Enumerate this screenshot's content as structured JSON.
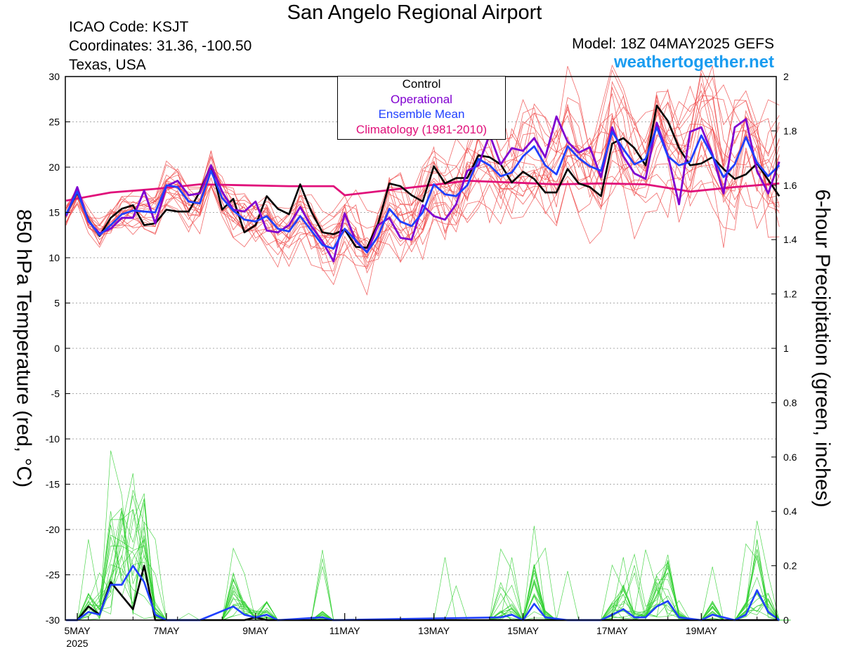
{
  "header": {
    "title": "San Angelo Regional Airport",
    "icao": "ICAO Code: KSJT",
    "coords": "Coordinates: 31.36, -100.50",
    "location": "Texas, USA",
    "model": "Model: 18Z 04MAY2025 GEFS",
    "site": "weathertogether.net"
  },
  "axes": {
    "left_label": "850 hPa Temperature (red, °C)",
    "right_label": "6-hour Precipitation (green, inches)"
  },
  "legend": [
    {
      "label": "Control",
      "color": "#000000"
    },
    {
      "label": "Operational",
      "color": "#8000d0"
    },
    {
      "label": "Ensemble Mean",
      "color": "#2040ff"
    },
    {
      "label": "Climatology (1981-2010)",
      "color": "#e0107a"
    }
  ],
  "colors": {
    "members_temp": "#f05050",
    "members_precip": "#30d030",
    "control": "#000000",
    "operational": "#8000d0",
    "mean": "#2040ff",
    "climatology": "#e0107a",
    "grid": "#aaaaaa"
  },
  "chart_data": {
    "type": "line",
    "x_ticks": [
      {
        "label": "5MAY",
        "sublabel": "2025",
        "day": 5
      },
      {
        "label": "7MAY",
        "day": 7
      },
      {
        "label": "9MAY",
        "day": 9
      },
      {
        "label": "11MAY",
        "day": 11
      },
      {
        "label": "13MAY",
        "day": 13
      },
      {
        "label": "15MAY",
        "day": 15
      },
      {
        "label": "17MAY",
        "day": 17
      },
      {
        "label": "19MAY",
        "day": 19
      }
    ],
    "x_range": [
      "2025-05-04 18Z",
      "2025-05-20 18Z"
    ],
    "y_left": {
      "min": -30,
      "max": 30,
      "ticks": [
        30,
        25,
        20,
        15,
        10,
        5,
        0,
        -5,
        -10,
        -15,
        -20,
        -25,
        -30
      ]
    },
    "y_right": {
      "min": 0,
      "max": 2,
      "ticks": [
        "2",
        "1.8",
        "1.6",
        "1.4",
        "1.2",
        "1",
        "0.8",
        "0.6",
        "0.4",
        "0.2",
        "0"
      ]
    },
    "grid": "dotted horizontal",
    "legend_position": "top-center",
    "temperature": {
      "control": [
        [
          "05-04 18Z",
          14.8
        ],
        [
          "05-05 00Z",
          17.2
        ],
        [
          "05-05 06Z",
          14.2
        ],
        [
          "05-05 12Z",
          12.4
        ],
        [
          "05-05 18Z",
          14.4
        ],
        [
          "05-06 00Z",
          15.4
        ],
        [
          "05-06 06Z",
          15.8
        ],
        [
          "05-06 12Z",
          13.6
        ],
        [
          "05-06 18Z",
          13.8
        ],
        [
          "05-07 00Z",
          15.3
        ],
        [
          "05-07 06Z",
          15.1
        ],
        [
          "05-07 12Z",
          15.1
        ],
        [
          "05-07 18Z",
          17.3
        ],
        [
          "05-08 00Z",
          20.2
        ],
        [
          "05-08 06Z",
          15.3
        ],
        [
          "05-08 12Z",
          16.5
        ],
        [
          "05-08 18Z",
          12.8
        ],
        [
          "05-09 00Z",
          13.6
        ],
        [
          "05-09 06Z",
          16.8
        ],
        [
          "05-09 12Z",
          15.4
        ],
        [
          "05-09 18Z",
          14.8
        ],
        [
          "05-10 00Z",
          18.1
        ],
        [
          "05-10 06Z",
          15.1
        ],
        [
          "05-10 12Z",
          12.8
        ],
        [
          "05-10 18Z",
          12.6
        ],
        [
          "05-11 00Z",
          13.1
        ],
        [
          "05-11 06Z",
          11.2
        ],
        [
          "05-11 12Z",
          11.1
        ],
        [
          "05-11 18Z",
          13.8
        ],
        [
          "05-12 00Z",
          18.2
        ],
        [
          "05-12 06Z",
          17.9
        ],
        [
          "05-12 12Z",
          16.9
        ],
        [
          "05-12 18Z",
          16.2
        ],
        [
          "05-13 00Z",
          20.1
        ],
        [
          "05-13 06Z",
          18.2
        ],
        [
          "05-13 12Z",
          18.8
        ],
        [
          "05-13 18Z",
          18.8
        ],
        [
          "05-14 00Z",
          21.3
        ],
        [
          "05-14 06Z",
          21.1
        ],
        [
          "05-14 12Z",
          20.3
        ],
        [
          "05-14 18Z",
          18.3
        ],
        [
          "05-15 00Z",
          19.5
        ],
        [
          "05-15 06Z",
          18.7
        ],
        [
          "05-15 12Z",
          17.2
        ],
        [
          "05-15 18Z",
          17.2
        ],
        [
          "05-16 00Z",
          19.8
        ],
        [
          "05-16 06Z",
          18.2
        ],
        [
          "05-16 12Z",
          17.8
        ],
        [
          "05-16 18Z",
          16.8
        ],
        [
          "05-17 00Z",
          22.6
        ],
        [
          "05-17 06Z",
          23.2
        ],
        [
          "05-17 12Z",
          22.1
        ],
        [
          "05-17 18Z",
          20.2
        ],
        [
          "05-18 00Z",
          26.8
        ],
        [
          "05-18 06Z",
          25.1
        ],
        [
          "05-18 12Z",
          22.1
        ],
        [
          "05-18 18Z",
          20.2
        ],
        [
          "05-19 00Z",
          20.4
        ],
        [
          "05-19 06Z",
          21.1
        ],
        [
          "05-19 12Z",
          19.8
        ],
        [
          "05-19 18Z",
          18.7
        ],
        [
          "05-20 00Z",
          19.2
        ],
        [
          "05-20 06Z",
          20.4
        ],
        [
          "05-20 12Z",
          18.6
        ],
        [
          "05-20 18Z",
          16.8
        ]
      ],
      "operational": [
        [
          "05-04 18Z",
          14.6
        ],
        [
          "05-05 00Z",
          17.8
        ],
        [
          "05-05 06Z",
          14.0
        ],
        [
          "05-05 12Z",
          12.7
        ],
        [
          "05-05 18Z",
          13.2
        ],
        [
          "05-06 00Z",
          14.4
        ],
        [
          "05-06 06Z",
          14.4
        ],
        [
          "05-06 12Z",
          17.4
        ],
        [
          "05-06 18Z",
          13.8
        ],
        [
          "05-07 00Z",
          17.9
        ],
        [
          "05-07 06Z",
          18.5
        ],
        [
          "05-07 12Z",
          16.9
        ],
        [
          "05-07 18Z",
          17.1
        ],
        [
          "05-08 00Z",
          20.2
        ],
        [
          "05-08 06Z",
          17.3
        ],
        [
          "05-08 12Z",
          15.3
        ],
        [
          "05-08 18Z",
          15.1
        ],
        [
          "05-09 00Z",
          16.2
        ],
        [
          "05-09 06Z",
          13.0
        ],
        [
          "05-09 12Z",
          12.8
        ],
        [
          "05-09 18Z",
          13.6
        ],
        [
          "05-10 00Z",
          15.6
        ],
        [
          "05-10 06Z",
          13.5
        ],
        [
          "05-10 12Z",
          11.8
        ],
        [
          "05-10 18Z",
          9.6
        ],
        [
          "05-11 00Z",
          14.9
        ],
        [
          "05-11 06Z",
          11.8
        ],
        [
          "05-11 12Z",
          10.6
        ],
        [
          "05-11 18Z",
          13.6
        ],
        [
          "05-12 00Z",
          14.4
        ],
        [
          "05-12 06Z",
          12.2
        ],
        [
          "05-12 12Z",
          12.0
        ],
        [
          "05-12 18Z",
          15.8
        ],
        [
          "05-13 00Z",
          14.6
        ],
        [
          "05-13 06Z",
          14.2
        ],
        [
          "05-13 12Z",
          15.9
        ],
        [
          "05-13 18Z",
          19.6
        ],
        [
          "05-14 00Z",
          20.2
        ],
        [
          "05-14 06Z",
          23.6
        ],
        [
          "05-14 12Z",
          20.3
        ],
        [
          "05-14 18Z",
          22.1
        ],
        [
          "05-15 00Z",
          21.8
        ],
        [
          "05-15 06Z",
          23.2
        ],
        [
          "05-15 12Z",
          21.1
        ],
        [
          "05-15 18Z",
          25.6
        ],
        [
          "05-16 00Z",
          22.8
        ],
        [
          "05-16 06Z",
          21.6
        ],
        [
          "05-16 12Z",
          22.2
        ],
        [
          "05-16 18Z",
          18.9
        ],
        [
          "05-17 00Z",
          24.4
        ],
        [
          "05-17 06Z",
          21.2
        ],
        [
          "05-17 12Z",
          19.3
        ],
        [
          "05-17 18Z",
          18.7
        ],
        [
          "05-18 00Z",
          24.9
        ],
        [
          "05-18 06Z",
          21.3
        ],
        [
          "05-18 12Z",
          15.9
        ],
        [
          "05-18 18Z",
          23.9
        ],
        [
          "05-19 00Z",
          24.4
        ],
        [
          "05-19 06Z",
          21.4
        ],
        [
          "05-19 12Z",
          17.1
        ],
        [
          "05-19 18Z",
          24.4
        ],
        [
          "05-20 00Z",
          25.3
        ],
        [
          "05-20 06Z",
          19.6
        ],
        [
          "05-20 12Z",
          17.1
        ],
        [
          "05-20 18Z",
          20.6
        ]
      ],
      "mean": [
        [
          "05-04 18Z",
          14.8
        ],
        [
          "05-05 00Z",
          17.3
        ],
        [
          "05-05 06Z",
          14.1
        ],
        [
          "05-05 12Z",
          12.5
        ],
        [
          "05-05 18Z",
          13.6
        ],
        [
          "05-06 00Z",
          14.8
        ],
        [
          "05-06 06Z",
          15.2
        ],
        [
          "05-06 12Z",
          15.1
        ],
        [
          "05-06 18Z",
          15.0
        ],
        [
          "05-07 00Z",
          18.0
        ],
        [
          "05-07 06Z",
          17.8
        ],
        [
          "05-07 12Z",
          16.2
        ],
        [
          "05-07 18Z",
          16.0
        ],
        [
          "05-08 00Z",
          19.6
        ],
        [
          "05-08 06Z",
          16.6
        ],
        [
          "05-08 12Z",
          15.2
        ],
        [
          "05-08 18Z",
          14.2
        ],
        [
          "05-09 00Z",
          14.0
        ],
        [
          "05-09 06Z",
          14.6
        ],
        [
          "05-09 12Z",
          13.2
        ],
        [
          "05-09 18Z",
          12.9
        ],
        [
          "05-10 00Z",
          14.6
        ],
        [
          "05-10 06Z",
          13.0
        ],
        [
          "05-10 12Z",
          11.4
        ],
        [
          "05-10 18Z",
          11.0
        ],
        [
          "05-11 00Z",
          13.2
        ],
        [
          "05-11 06Z",
          11.9
        ],
        [
          "05-11 12Z",
          10.6
        ],
        [
          "05-11 18Z",
          12.4
        ],
        [
          "05-12 00Z",
          15.4
        ],
        [
          "05-12 06Z",
          14.0
        ],
        [
          "05-12 12Z",
          13.5
        ],
        [
          "05-12 18Z",
          15.0
        ],
        [
          "05-13 00Z",
          18.1
        ],
        [
          "05-13 06Z",
          17.0
        ],
        [
          "05-13 12Z",
          16.8
        ],
        [
          "05-13 18Z",
          18.0
        ],
        [
          "05-14 00Z",
          20.9
        ],
        [
          "05-14 06Z",
          20.2
        ],
        [
          "05-14 12Z",
          19.0
        ],
        [
          "05-14 18Z",
          19.4
        ],
        [
          "05-15 00Z",
          21.2
        ],
        [
          "05-15 06Z",
          22.3
        ],
        [
          "05-15 12Z",
          20.2
        ],
        [
          "05-15 18Z",
          19.2
        ],
        [
          "05-16 00Z",
          22.3
        ],
        [
          "05-16 06Z",
          21.0
        ],
        [
          "05-16 12Z",
          20.1
        ],
        [
          "05-16 18Z",
          19.6
        ],
        [
          "05-17 00Z",
          23.9
        ],
        [
          "05-17 06Z",
          22.0
        ],
        [
          "05-17 12Z",
          20.3
        ],
        [
          "05-17 18Z",
          20.9
        ],
        [
          "05-18 00Z",
          24.4
        ],
        [
          "05-18 06Z",
          21.2
        ],
        [
          "05-18 12Z",
          20.2
        ],
        [
          "05-18 18Z",
          20.6
        ],
        [
          "05-19 00Z",
          23.5
        ],
        [
          "05-19 06Z",
          21.2
        ],
        [
          "05-19 12Z",
          18.9
        ],
        [
          "05-19 18Z",
          20.3
        ],
        [
          "05-20 00Z",
          23.3
        ],
        [
          "05-20 06Z",
          20.5
        ],
        [
          "05-20 12Z",
          19.0
        ],
        [
          "05-20 18Z",
          20.2
        ]
      ],
      "climatology": [
        [
          "05-04 18Z",
          16.3
        ],
        [
          "05-05 18Z",
          17.2
        ],
        [
          "05-06 18Z",
          17.6
        ],
        [
          "05-07 18Z",
          18.1
        ],
        [
          "05-08 18Z",
          18.0
        ],
        [
          "05-09 18Z",
          17.9
        ],
        [
          "05-10 18Z",
          17.9
        ],
        [
          "05-11 00Z",
          16.9
        ],
        [
          "05-12 18Z",
          17.9
        ],
        [
          "05-13 18Z",
          18.5
        ],
        [
          "05-14 18Z",
          18.3
        ],
        [
          "05-15 18Z",
          18.1
        ],
        [
          "05-16 18Z",
          18.2
        ],
        [
          "05-17 18Z",
          18.1
        ],
        [
          "05-18 18Z",
          17.3
        ],
        [
          "05-19 18Z",
          17.8
        ],
        [
          "05-20 18Z",
          18.2
        ]
      ]
    },
    "precipitation": {
      "control": [
        [
          "05-04 18Z",
          0
        ],
        [
          "05-05 00Z",
          0
        ],
        [
          "05-05 06Z",
          0.05
        ],
        [
          "05-05 12Z",
          0.02
        ],
        [
          "05-05 18Z",
          0.14
        ],
        [
          "05-06 00Z",
          0.09
        ],
        [
          "05-06 06Z",
          0.04
        ],
        [
          "05-06 12Z",
          0.2
        ],
        [
          "05-06 18Z",
          0
        ],
        [
          "05-07 00Z",
          0
        ],
        [
          "05-08 00Z",
          0
        ],
        [
          "05-08 18Z",
          0
        ],
        [
          "05-09 00Z",
          0.01
        ],
        [
          "05-09 06Z",
          0
        ],
        [
          "05-20 18Z",
          0
        ]
      ],
      "mean": [
        [
          "05-04 18Z",
          0
        ],
        [
          "05-05 00Z",
          0
        ],
        [
          "05-05 06Z",
          0.03
        ],
        [
          "05-05 12Z",
          0.02
        ],
        [
          "05-05 18Z",
          0.13
        ],
        [
          "05-06 00Z",
          0.13
        ],
        [
          "05-06 06Z",
          0.2
        ],
        [
          "05-06 12Z",
          0.14
        ],
        [
          "05-06 18Z",
          0.02
        ],
        [
          "05-07 00Z",
          0
        ],
        [
          "05-07 18Z",
          0
        ],
        [
          "05-08 12Z",
          0.05
        ],
        [
          "05-08 18Z",
          0.02
        ],
        [
          "05-09 00Z",
          0.01
        ],
        [
          "05-09 06Z",
          0.02
        ],
        [
          "05-09 12Z",
          0
        ],
        [
          "05-10 12Z",
          0.01
        ],
        [
          "05-10 18Z",
          0
        ],
        [
          "05-14 12Z",
          0.01
        ],
        [
          "05-14 18Z",
          0.02
        ],
        [
          "05-15 00Z",
          0
        ],
        [
          "05-15 06Z",
          0.06
        ],
        [
          "05-15 12Z",
          0.01
        ],
        [
          "05-16 00Z",
          0
        ],
        [
          "05-16 18Z",
          0
        ],
        [
          "05-17 00Z",
          0.02
        ],
        [
          "05-17 06Z",
          0.04
        ],
        [
          "05-17 12Z",
          0.01
        ],
        [
          "05-17 18Z",
          0.01
        ],
        [
          "05-18 00Z",
          0.05
        ],
        [
          "05-18 06Z",
          0.07
        ],
        [
          "05-18 12Z",
          0.01
        ],
        [
          "05-19 00Z",
          0
        ],
        [
          "05-19 06Z",
          0.02
        ],
        [
          "05-19 18Z",
          0
        ],
        [
          "05-20 00Z",
          0.02
        ],
        [
          "05-20 06Z",
          0.11
        ],
        [
          "05-20 12Z",
          0.03
        ],
        [
          "05-20 18Z",
          0
        ]
      ]
    }
  }
}
